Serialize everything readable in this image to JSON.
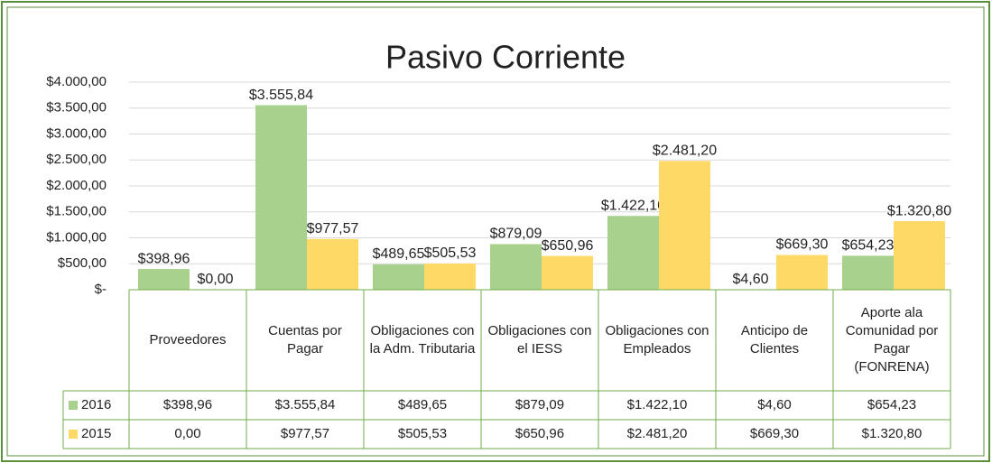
{
  "chart_data": {
    "type": "bar",
    "title": "Pasivo Corriente",
    "categories": [
      "Proveedores",
      "Cuentas por Pagar",
      "Obligaciones con la Adm. Tributaria",
      "Obligaciones con el IESS",
      "Obligaciones con Empleados",
      "Anticipo de Clientes",
      "Aporte ala Comunidad por Pagar (FONRENA)"
    ],
    "series": [
      {
        "name": "2016",
        "color": "#a9d18e",
        "values": [
          398.96,
          3555.84,
          489.65,
          879.09,
          1422.1,
          4.6,
          654.23
        ],
        "value_labels": [
          "$398,96",
          "$3.555,84",
          "$489,65",
          "$879,09",
          "$1.422,10",
          "$4,60",
          "$654,23"
        ],
        "table_labels": [
          "$398,96",
          "$3.555,84",
          "$489,65",
          "$879,09",
          "$1.422,10",
          "$4,60",
          "$654,23"
        ]
      },
      {
        "name": "2015",
        "color": "#ffd966",
        "values": [
          0,
          977.57,
          505.53,
          650.96,
          2481.2,
          669.3,
          1320.8
        ],
        "value_labels": [
          "$0,00",
          "$977,57",
          "$505,53",
          "$650,96",
          "$2.481,20",
          "$669,30",
          "$1.320,80"
        ],
        "table_labels": [
          "0,00",
          "$977,57",
          "$505,53",
          "$650,96",
          "$2.481,20",
          "$669,30",
          "$1.320,80"
        ]
      }
    ],
    "ylim": [
      0,
      4000
    ],
    "yticks": [
      {
        "value": 0,
        "label": "$-"
      },
      {
        "value": 500,
        "label": "$500,00"
      },
      {
        "value": 1000,
        "label": "$1.000,00"
      },
      {
        "value": 1500,
        "label": "$1.500,00"
      },
      {
        "value": 2000,
        "label": "$2.000,00"
      },
      {
        "value": 2500,
        "label": "$2.500,00"
      },
      {
        "value": 3000,
        "label": "$3.000,00"
      },
      {
        "value": 3500,
        "label": "$3.500,00"
      },
      {
        "value": 4000,
        "label": "$4.000,00"
      }
    ],
    "grid": true,
    "data_table": true
  }
}
